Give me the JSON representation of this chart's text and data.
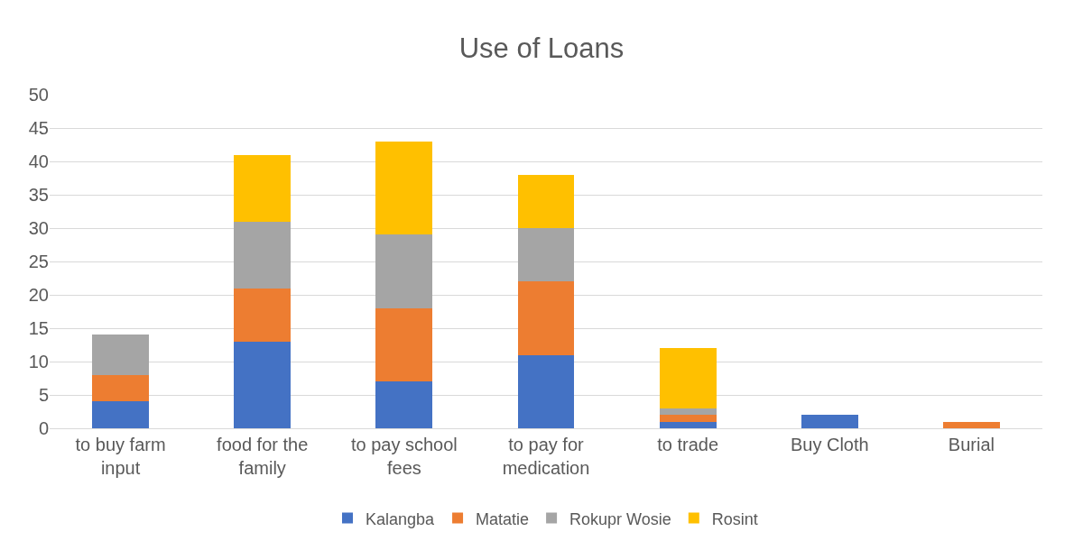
{
  "chart_data": {
    "type": "bar",
    "title": "Use of Loans",
    "stacked": true,
    "categories": [
      "to buy farm input",
      "food for the family",
      "to pay school fees",
      "to pay for medication",
      "to trade",
      "Buy Cloth",
      "Burial"
    ],
    "series": [
      {
        "name": "Kalangba",
        "color": "#4472c4",
        "values": [
          4,
          13,
          7,
          11,
          1,
          2,
          0
        ]
      },
      {
        "name": "Matatie",
        "color": "#ed7d31",
        "values": [
          4,
          8,
          11,
          11,
          1,
          0,
          1
        ]
      },
      {
        "name": "Rokupr Wosie",
        "color": "#a5a5a5",
        "values": [
          6,
          10,
          11,
          8,
          1,
          0,
          0
        ]
      },
      {
        "name": "Rosint",
        "color": "#ffc000",
        "values": [
          0,
          10,
          14,
          8,
          9,
          0,
          0
        ]
      }
    ],
    "ylim": [
      0,
      50
    ],
    "yticks": [
      0,
      5,
      10,
      15,
      20,
      25,
      30,
      35,
      40,
      45,
      50
    ],
    "grid": "y",
    "legend": "bottom"
  }
}
